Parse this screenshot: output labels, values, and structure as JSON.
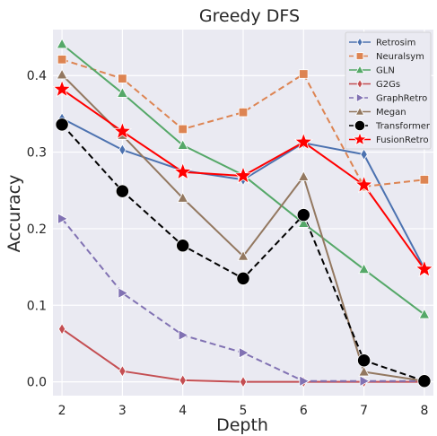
{
  "chart_data": {
    "type": "line",
    "title": "Greedy DFS",
    "xlabel": "Depth",
    "ylabel": "Accuracy",
    "x": [
      2,
      3,
      4,
      5,
      6,
      7,
      8
    ],
    "xlim": [
      1.85,
      8.15
    ],
    "ylim": [
      -0.018,
      0.46
    ],
    "yticks": [
      0.0,
      0.1,
      0.2,
      0.3,
      0.4
    ],
    "ytick_labels": [
      "0.0",
      "0.1",
      "0.2",
      "0.3",
      "0.4"
    ],
    "xtick_labels": [
      "2",
      "3",
      "4",
      "5",
      "6",
      "7",
      "8"
    ],
    "grid": true,
    "legend_position": "top-right",
    "series": [
      {
        "name": "Retrosim",
        "values": [
          0.344,
          0.303,
          0.276,
          0.264,
          0.312,
          0.297,
          0.148
        ],
        "color": "#4c72b0",
        "marker": "diamond",
        "dash": "solid"
      },
      {
        "name": "Neuralsym",
        "values": [
          0.421,
          0.396,
          0.33,
          0.352,
          0.402,
          0.255,
          0.264
        ],
        "color": "#dd8452",
        "marker": "square",
        "dash": "dashed"
      },
      {
        "name": "GLN",
        "values": [
          0.441,
          0.377,
          0.309,
          0.27,
          0.207,
          0.147,
          0.088
        ],
        "color": "#55a868",
        "marker": "triangle-up",
        "dash": "solid"
      },
      {
        "name": "G2Gs",
        "values": [
          0.069,
          0.014,
          0.002,
          0.0,
          0.0,
          0.0,
          0.0
        ],
        "color": "#c44e52",
        "marker": "diamond",
        "dash": "solid"
      },
      {
        "name": "GraphRetro",
        "values": [
          0.213,
          0.116,
          0.061,
          0.038,
          0.001,
          0.001,
          0.001
        ],
        "color": "#8172b3",
        "marker": "triangle-right",
        "dash": "dashed"
      },
      {
        "name": "Megan",
        "values": [
          0.401,
          0.322,
          0.24,
          0.164,
          0.268,
          0.013,
          0.001
        ],
        "color": "#937860",
        "marker": "triangle-up",
        "dash": "solid"
      },
      {
        "name": "Transformer",
        "values": [
          0.336,
          0.249,
          0.178,
          0.135,
          0.218,
          0.028,
          0.001
        ],
        "color": "#000000",
        "marker": "circle",
        "dash": "dashed"
      },
      {
        "name": "FusionRetro",
        "values": [
          0.382,
          0.327,
          0.274,
          0.269,
          0.313,
          0.257,
          0.147
        ],
        "color": "#ff0000",
        "marker": "star",
        "dash": "solid"
      }
    ]
  }
}
